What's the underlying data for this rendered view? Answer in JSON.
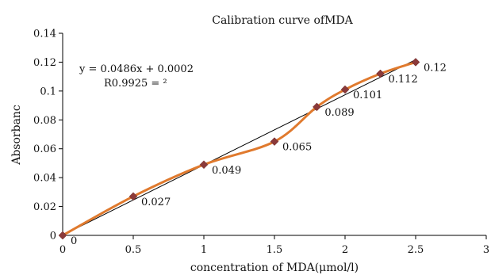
{
  "chart_data": {
    "type": "scatter",
    "title": "Calibration curve ofMDA",
    "xlabel": "concentration of MDA(μmol/l)",
    "ylabel": "Absorbanc",
    "xlim": [
      0,
      3
    ],
    "ylim": [
      0,
      0.14
    ],
    "xticks": [
      0,
      0.5,
      1,
      1.5,
      2,
      2.5,
      3
    ],
    "xtick_labels": [
      "0",
      "0.5",
      "1",
      "1.5",
      "2",
      "2.5",
      "3"
    ],
    "yticks": [
      0,
      0.02,
      0.04,
      0.06,
      0.08,
      0.1,
      0.12,
      0.14
    ],
    "ytick_labels": [
      "0",
      "0.02",
      "0.04",
      "0.06",
      "0.08",
      "0.1",
      "0.12",
      "0.14"
    ],
    "grid": false,
    "legend": "none",
    "series": [
      {
        "x": [
          0,
          0.5,
          1,
          1.5,
          1.8,
          2,
          2.25,
          2.5
        ],
        "y": [
          0,
          0.027,
          0.049,
          0.065,
          0.089,
          0.101,
          0.112,
          0.12
        ],
        "point_labels": [
          "0",
          "0.027",
          "0.049",
          "0.065",
          "0.089",
          "0.101",
          "0.112",
          "0.12"
        ],
        "marker_color": "#8B3A3A",
        "line_color": "#E07A2E"
      }
    ],
    "trendline": {
      "slope": 0.0486,
      "intercept": 0.0002,
      "x_range": [
        0,
        2.5
      ],
      "color": "#000000"
    },
    "equation_text": "y = 0.0486x + 0.0002",
    "r2_text": "R0.9925 = ²"
  }
}
